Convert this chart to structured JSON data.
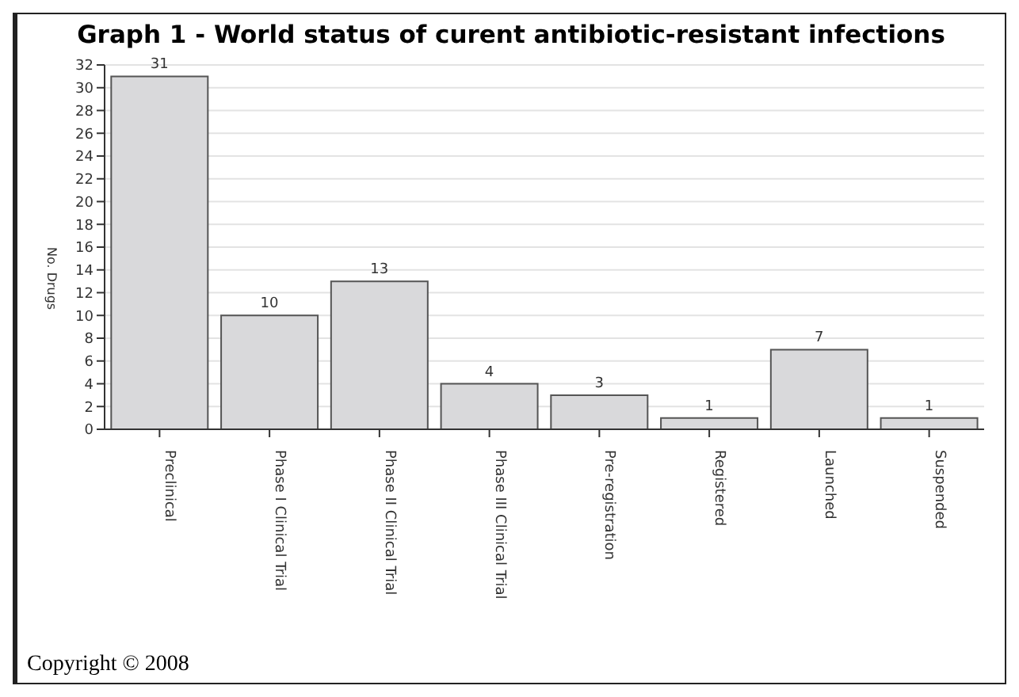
{
  "chart_data": {
    "type": "bar",
    "title": "Graph 1 - World status of curent antibiotic-resistant infections",
    "ylabel": "No. Drugs",
    "categories": [
      "Preclinical",
      "Phase I Clinical Trial",
      "Phase II Clinical Trial",
      "Phase III Clinical Trial",
      "Pre-registration",
      "Registered",
      "Launched",
      "Suspended"
    ],
    "values": [
      31,
      10,
      13,
      4,
      3,
      1,
      7,
      1
    ],
    "color": "#d9d9db",
    "ylim": [
      0,
      32
    ],
    "yticks": [
      0,
      2,
      4,
      6,
      8,
      10,
      12,
      14,
      16,
      18,
      20,
      22,
      24,
      26,
      28,
      30,
      32
    ],
    "grid": "y",
    "data_labels": true,
    "annotations": [
      "Copyright © 2008"
    ]
  }
}
